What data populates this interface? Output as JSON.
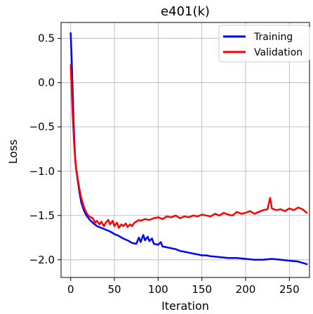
{
  "chart_data": {
    "type": "line",
    "title": "e401(k)",
    "xlabel": "Iteration",
    "ylabel": "Loss",
    "xlim": [
      -11,
      273
    ],
    "ylim": [
      -2.2,
      0.68
    ],
    "xticks": [
      0,
      50,
      100,
      150,
      200,
      250
    ],
    "yticks": [
      0.5,
      0.0,
      -0.5,
      -1.0,
      -1.5,
      -2.0
    ],
    "xtick_labels": [
      "0",
      "50",
      "100",
      "150",
      "200",
      "250"
    ],
    "ytick_labels": [
      "0.5",
      "0.0",
      "−0.5",
      "−1.0",
      "−1.5",
      "−2.0"
    ],
    "grid": true,
    "legend_position": "top-right",
    "series": [
      {
        "name": "Training",
        "color": "#0000ff",
        "x": [
          0,
          1,
          2,
          3,
          4,
          5,
          6,
          8,
          10,
          12,
          15,
          18,
          21,
          25,
          30,
          35,
          40,
          45,
          50,
          55,
          60,
          65,
          70,
          75,
          78,
          80,
          83,
          85,
          88,
          90,
          93,
          95,
          100,
          103,
          105,
          110,
          115,
          120,
          125,
          130,
          135,
          140,
          145,
          150,
          155,
          160,
          170,
          180,
          190,
          200,
          210,
          220,
          230,
          240,
          250,
          260,
          270
        ],
        "y": [
          0.56,
          0.3,
          0.0,
          -0.35,
          -0.62,
          -0.82,
          -0.96,
          -1.1,
          -1.24,
          -1.35,
          -1.44,
          -1.5,
          -1.54,
          -1.58,
          -1.62,
          -1.64,
          -1.66,
          -1.68,
          -1.71,
          -1.73,
          -1.76,
          -1.78,
          -1.81,
          -1.82,
          -1.75,
          -1.8,
          -1.72,
          -1.78,
          -1.74,
          -1.79,
          -1.76,
          -1.82,
          -1.83,
          -1.8,
          -1.85,
          -1.86,
          -1.87,
          -1.88,
          -1.9,
          -1.91,
          -1.92,
          -1.93,
          -1.94,
          -1.95,
          -1.95,
          -1.96,
          -1.97,
          -1.98,
          -1.98,
          -1.99,
          -2.0,
          -2.0,
          -1.99,
          -2.0,
          -2.01,
          -2.02,
          -2.05
        ]
      },
      {
        "name": "Validation",
        "color": "#ff0000",
        "x": [
          0,
          1,
          2,
          3,
          4,
          5,
          6,
          8,
          10,
          12,
          15,
          18,
          21,
          25,
          28,
          30,
          33,
          35,
          38,
          40,
          43,
          45,
          48,
          50,
          53,
          55,
          58,
          60,
          63,
          65,
          68,
          70,
          73,
          75,
          78,
          80,
          85,
          90,
          95,
          100,
          105,
          110,
          115,
          120,
          125,
          130,
          135,
          140,
          145,
          150,
          155,
          160,
          165,
          170,
          175,
          180,
          185,
          190,
          195,
          200,
          205,
          210,
          215,
          220,
          225,
          228,
          230,
          235,
          240,
          245,
          250,
          255,
          260,
          265,
          270
        ],
        "y": [
          0.2,
          -0.05,
          -0.3,
          -0.52,
          -0.7,
          -0.84,
          -0.95,
          -1.08,
          -1.2,
          -1.3,
          -1.4,
          -1.47,
          -1.51,
          -1.53,
          -1.58,
          -1.56,
          -1.6,
          -1.57,
          -1.62,
          -1.58,
          -1.55,
          -1.6,
          -1.56,
          -1.62,
          -1.58,
          -1.64,
          -1.6,
          -1.62,
          -1.59,
          -1.63,
          -1.6,
          -1.62,
          -1.58,
          -1.57,
          -1.55,
          -1.56,
          -1.54,
          -1.55,
          -1.53,
          -1.52,
          -1.54,
          -1.51,
          -1.52,
          -1.5,
          -1.53,
          -1.51,
          -1.52,
          -1.5,
          -1.51,
          -1.49,
          -1.5,
          -1.51,
          -1.48,
          -1.5,
          -1.47,
          -1.49,
          -1.5,
          -1.46,
          -1.48,
          -1.47,
          -1.45,
          -1.48,
          -1.46,
          -1.44,
          -1.43,
          -1.3,
          -1.42,
          -1.44,
          -1.43,
          -1.45,
          -1.42,
          -1.44,
          -1.41,
          -1.43,
          -1.47
        ]
      }
    ]
  }
}
